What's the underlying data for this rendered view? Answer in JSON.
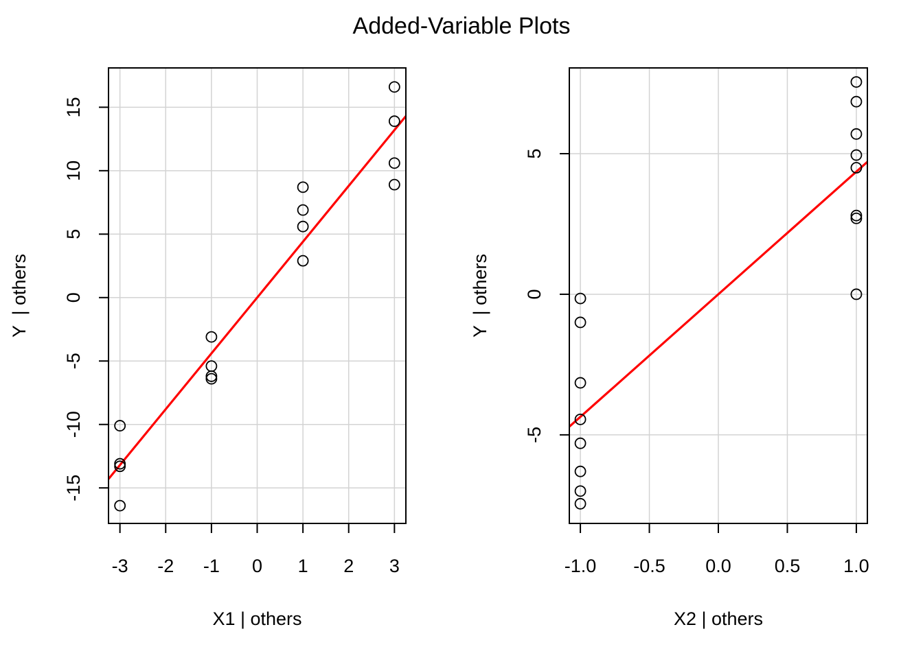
{
  "title": "Added-Variable Plots",
  "colors": {
    "fit_line": "#ff0000",
    "points": "#000000",
    "grid": "#d3d3d3",
    "frame": "#000000"
  },
  "chart_data": [
    {
      "type": "scatter",
      "xlabel": "X1 | others",
      "ylabel": "Y  | others",
      "xlim": [
        -3.25,
        3.25
      ],
      "ylim": [
        -17.8,
        18.1
      ],
      "x_ticks": [
        -3,
        -2,
        -1,
        0,
        1,
        2,
        3
      ],
      "x_tick_labels": [
        "-3",
        "-2",
        "-1",
        "0",
        "1",
        "2",
        "3"
      ],
      "y_ticks": [
        -15,
        -10,
        -5,
        0,
        5,
        10,
        15
      ],
      "y_tick_labels": [
        "-15",
        "-10",
        "-5",
        "0",
        "5",
        "10",
        "15"
      ],
      "grid": true,
      "points": [
        {
          "x": -3,
          "y": -10.1
        },
        {
          "x": -3,
          "y": -13.1
        },
        {
          "x": -3,
          "y": -13.3
        },
        {
          "x": -3,
          "y": -16.4
        },
        {
          "x": -1,
          "y": -3.1
        },
        {
          "x": -1,
          "y": -5.4
        },
        {
          "x": -1,
          "y": -6.2
        },
        {
          "x": -1,
          "y": -6.4
        },
        {
          "x": 1,
          "y": 8.7
        },
        {
          "x": 1,
          "y": 6.9
        },
        {
          "x": 1,
          "y": 5.6
        },
        {
          "x": 1,
          "y": 2.9
        },
        {
          "x": 3,
          "y": 16.6
        },
        {
          "x": 3,
          "y": 13.9
        },
        {
          "x": 3,
          "y": 10.6
        },
        {
          "x": 3,
          "y": 8.9
        }
      ],
      "fit_line": {
        "slope": 4.4,
        "intercept": 0
      }
    },
    {
      "type": "scatter",
      "xlabel": "X2 | others",
      "ylabel": "Y  | others",
      "xlim": [
        -1.08,
        1.08
      ],
      "ylim": [
        -8.15,
        8.05
      ],
      "x_ticks": [
        -1.0,
        -0.5,
        0.0,
        0.5,
        1.0
      ],
      "x_tick_labels": [
        "-1.0",
        "-0.5",
        "0.0",
        "0.5",
        "1.0"
      ],
      "y_ticks": [
        -5,
        0,
        5
      ],
      "y_tick_labels": [
        "-5",
        "0",
        "5"
      ],
      "grid": true,
      "points": [
        {
          "x": -1,
          "y": -0.15
        },
        {
          "x": -1,
          "y": -1.0
        },
        {
          "x": -1,
          "y": -3.15
        },
        {
          "x": -1,
          "y": -4.45
        },
        {
          "x": -1,
          "y": -5.3
        },
        {
          "x": -1,
          "y": -6.3
        },
        {
          "x": -1,
          "y": -7.0
        },
        {
          "x": -1,
          "y": -7.45
        },
        {
          "x": 1,
          "y": 7.55
        },
        {
          "x": 1,
          "y": 6.85
        },
        {
          "x": 1,
          "y": 5.7
        },
        {
          "x": 1,
          "y": 4.95
        },
        {
          "x": 1,
          "y": 4.5
        },
        {
          "x": 1,
          "y": 2.8
        },
        {
          "x": 1,
          "y": 2.7
        },
        {
          "x": 1,
          "y": 0.0
        }
      ],
      "fit_line": {
        "slope": 4.36,
        "intercept": 0
      }
    }
  ]
}
